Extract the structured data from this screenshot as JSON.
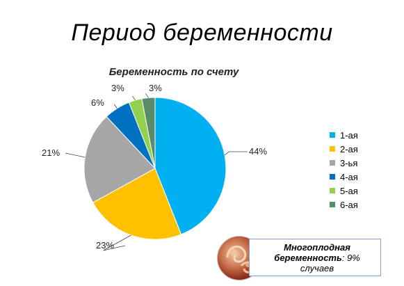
{
  "slide": {
    "title": "Период беременности"
  },
  "chart_data": {
    "type": "pie",
    "title": "Беременность по счету",
    "categories": [
      "1-ая",
      "2-ая",
      "3-ья",
      "4-ая",
      "5-ая",
      "6-ая"
    ],
    "values": [
      44,
      23,
      21,
      6,
      3,
      3
    ],
    "labels": [
      "44%",
      "23%",
      "21%",
      "6%",
      "3%",
      "3%"
    ],
    "colors": [
      "#00B0F0",
      "#FFC000",
      "#A6A6A6",
      "#0070C0",
      "#92D050",
      "#5B8C69"
    ],
    "legend_position": "right",
    "start": "12 o'clock, clockwise"
  },
  "note": {
    "bold_text": "Многоплодная беременность",
    "rest_text": ": 9% случаев"
  }
}
